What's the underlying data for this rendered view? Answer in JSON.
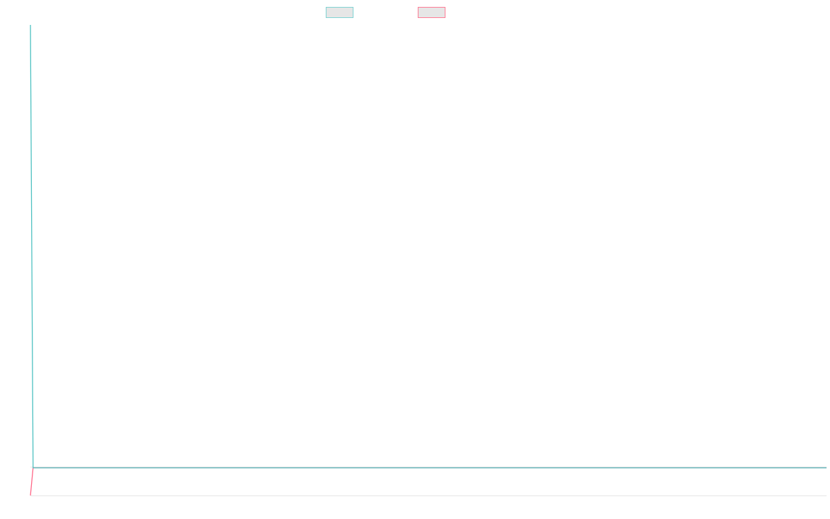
{
  "chart_data": {
    "type": "line",
    "title": "",
    "xlabel": "",
    "ylabel": "",
    "x": [
      0,
      1,
      300
    ],
    "xlim": [
      0,
      300
    ],
    "ylim": [
      -1,
      16
    ],
    "grid": false,
    "legend": "top-center",
    "series": [
      {
        "values": [
          16,
          0,
          0
        ],
        "color": "#4bc0c0"
      },
      {
        "values": [
          -1,
          0,
          0
        ],
        "color": "#ff6384"
      }
    ]
  }
}
